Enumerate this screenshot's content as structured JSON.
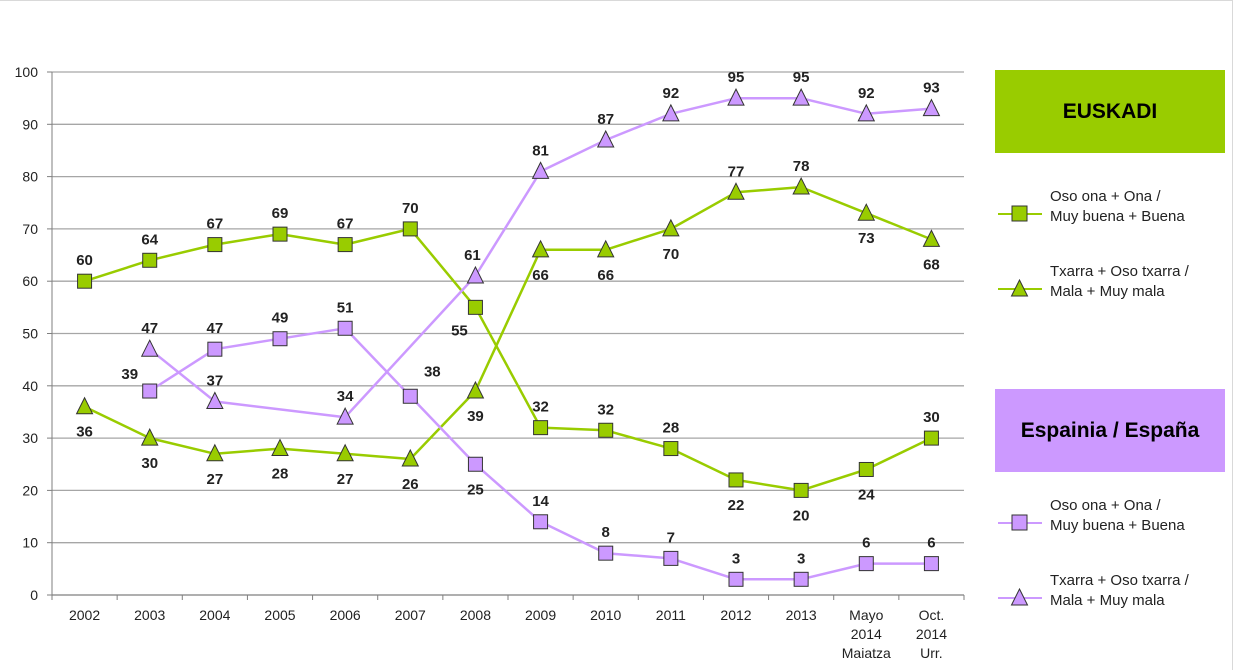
{
  "chart_data": {
    "type": "line",
    "categories": [
      "2002",
      "2003",
      "2004",
      "2005",
      "2006",
      "2007",
      "2008",
      "2009",
      "2010",
      "2011",
      "2012",
      "2013",
      [
        "Mayo",
        "2014",
        "Maiatza"
      ],
      [
        "Oct.",
        "2014",
        "Urr."
      ]
    ],
    "ylim": [
      0,
      100
    ],
    "yticks": [
      0,
      10,
      20,
      30,
      40,
      50,
      60,
      70,
      80,
      90,
      100
    ],
    "grid": true,
    "series": [
      {
        "group": "EUSKADI",
        "color": "#99cc00",
        "marker": "square",
        "values": [
          60,
          64,
          67,
          69,
          67,
          70,
          55,
          32,
          31.5,
          28,
          22,
          20,
          24,
          30
        ],
        "labels": [
          "60",
          "64",
          "67",
          "69",
          "67",
          "70",
          "55",
          "32",
          "32",
          "28",
          "22",
          "20",
          "24",
          "30"
        ]
      },
      {
        "group": "EUSKADI",
        "color": "#99cc00",
        "marker": "triangle",
        "values": [
          36,
          30,
          27,
          28,
          27,
          26,
          39,
          66,
          66,
          70,
          77,
          78,
          73,
          68
        ],
        "labels": [
          "36",
          "30",
          "27",
          "28",
          "27",
          "26",
          "39",
          "66",
          "66",
          "70",
          "77",
          "78",
          "73",
          "68"
        ]
      },
      {
        "group": "Espainia / España",
        "color": "#cc99ff",
        "marker": "square",
        "values": [
          null,
          39,
          47,
          49,
          51,
          38,
          25,
          14,
          8,
          7,
          3,
          3,
          6,
          6
        ],
        "labels": [
          "",
          "39",
          "47",
          "49",
          "51",
          "38",
          "25",
          "14",
          "8",
          "7",
          "3",
          "3",
          "6",
          "6"
        ]
      },
      {
        "group": "Espainia / España",
        "color": "#cc99ff",
        "marker": "triangle",
        "values": [
          null,
          47,
          37,
          null,
          34,
          null,
          61,
          81,
          87,
          92,
          95,
          95,
          92,
          93
        ],
        "labels": [
          "",
          "47",
          "37",
          "",
          "34",
          "",
          "61",
          "81",
          "87",
          "92",
          "95",
          "95",
          "92",
          "93"
        ]
      }
    ]
  },
  "legend": {
    "euskadi_title": "EUSKADI",
    "espainia_title": "Espainia / España",
    "items": [
      {
        "line1": "Oso ona + Ona /",
        "line2": "Muy buena +  Buena"
      },
      {
        "line1": "Txarra  + Oso txarra /",
        "line2": "Mala + Muy mala"
      },
      {
        "line1": "Oso ona + Ona /",
        "line2": "Muy buena +  Buena"
      },
      {
        "line1": "Txarra  + Oso txarra /",
        "line2": "Mala + Muy mala"
      }
    ]
  }
}
